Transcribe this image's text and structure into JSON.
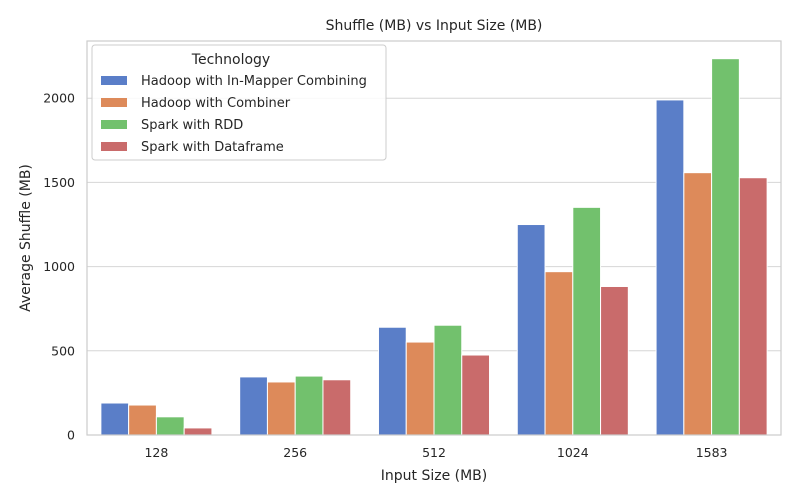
{
  "chart_data": {
    "type": "bar",
    "title": "Shuffle (MB) vs Input Size (MB)",
    "xlabel": "Input Size (MB)",
    "ylabel": "Average Shuffle (MB)",
    "categories": [
      "128",
      "256",
      "512",
      "1024",
      "1583"
    ],
    "ylim": [
      0,
      2340
    ],
    "yticks": [
      0,
      500,
      1000,
      1500,
      2000
    ],
    "grid": "horizontal",
    "legend": {
      "title": "Technology",
      "placement": "top-left"
    },
    "series": [
      {
        "name": "Hadoop with In-Mapper Combining",
        "color": "#5a7ec8",
        "values": [
          190,
          345,
          640,
          1250,
          1990
        ]
      },
      {
        "name": "Hadoop with Combiner",
        "color": "#dd8a5a",
        "values": [
          178,
          315,
          552,
          970,
          1558
        ]
      },
      {
        "name": "Spark with RDD",
        "color": "#72c16d",
        "values": [
          108,
          350,
          652,
          1352,
          2235
        ]
      },
      {
        "name": "Spark with Dataframe",
        "color": "#c96b6b",
        "values": [
          42,
          328,
          475,
          882,
          1528
        ]
      }
    ]
  }
}
